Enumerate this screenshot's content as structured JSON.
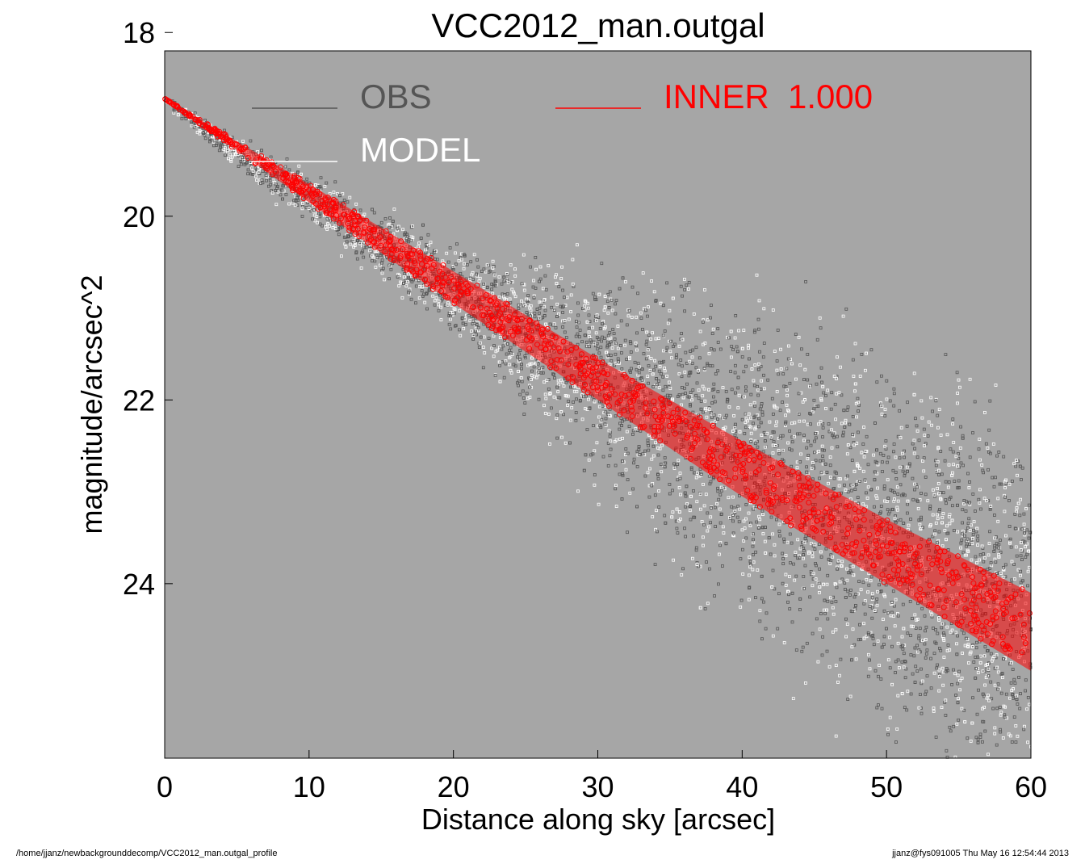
{
  "chart_data": {
    "type": "scatter",
    "title": "VCC2012_man.outgal",
    "xlabel": "Distance along sky [arcsec]",
    "ylabel": "magnitude/arcsec^2",
    "xlim": [
      0,
      60
    ],
    "ylim": [
      25.9,
      18.2
    ],
    "y_inverted": true,
    "xticks": [
      0,
      10,
      20,
      30,
      40,
      50,
      60
    ],
    "yticks": [
      18,
      20,
      22,
      24
    ],
    "background_color": "#a6a6a6",
    "grid": false,
    "legend": [
      {
        "label": "OBS",
        "color": "#555555"
      },
      {
        "label": "MODEL",
        "color": "#ffffff"
      },
      {
        "label": "INNER  1.000",
        "color": "#ff0000"
      }
    ],
    "series": [
      {
        "name": "OBS",
        "color": "#555555",
        "marker": "square",
        "trend_x": [
          0,
          5,
          10,
          15,
          20,
          25,
          30,
          35,
          40,
          45,
          50,
          55,
          60
        ],
        "trend_y": [
          18.75,
          19.3,
          19.8,
          20.3,
          20.8,
          21.3,
          21.75,
          22.2,
          22.65,
          23.1,
          23.55,
          24.0,
          24.45
        ],
        "scatter_at_x": [
          0,
          10,
          20,
          30,
          40,
          50,
          60
        ],
        "scatter_spread": [
          0.05,
          0.25,
          0.4,
          1.0,
          1.6,
          1.8,
          1.9
        ]
      },
      {
        "name": "MODEL",
        "color": "#ffffff",
        "marker": "circle"
      },
      {
        "name": "INNER  1.000",
        "color": "#ff0000",
        "marker": "circle",
        "band_x": [
          0,
          10,
          20,
          30,
          40,
          50,
          60
        ],
        "band_upper": [
          18.72,
          19.65,
          20.6,
          21.55,
          22.45,
          23.3,
          24.1
        ],
        "band_lower": [
          18.72,
          19.85,
          20.95,
          22.0,
          23.05,
          24.0,
          24.95
        ]
      }
    ]
  },
  "footer": {
    "path": "/home/jjanz/newbackgrounddecomp/VCC2012_man.outgal_profile",
    "stamp": "jjanz@fys091005  Thu May 16 12:54:44 2013"
  }
}
